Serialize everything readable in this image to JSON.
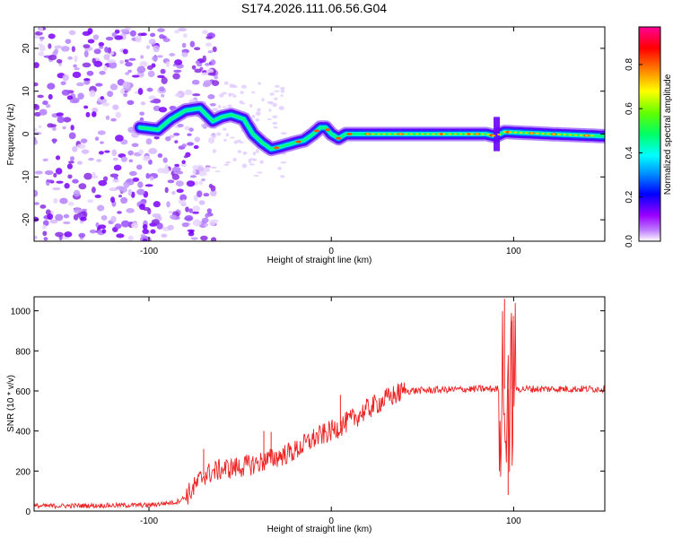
{
  "title": "S174.2026.111.06.56.G04",
  "chart_data": [
    {
      "type": "heatmap",
      "xlabel": "Height of straight line (km)",
      "ylabel": "Frequency (Hz)",
      "xlim": [
        -163,
        150
      ],
      "ylim": [
        -25,
        25
      ],
      "x_ticks": [
        -100,
        0,
        100
      ],
      "y_ticks": [
        -20,
        -10,
        0,
        10,
        20
      ],
      "colorbar": {
        "label": "Normalized spectral amplitude",
        "range": [
          0,
          0.97
        ],
        "ticks": [
          0.0,
          0.2,
          0.4,
          0.6,
          0.8
        ],
        "colors": [
          "#ffffff",
          "#9a00ff",
          "#0000ff",
          "#00b4ff",
          "#00ffff",
          "#00ff64",
          "#64ff00",
          "#ffff00",
          "#ff8000",
          "#ff0000",
          "#ff0096"
        ]
      },
      "ridge_frequency": [
        {
          "x": -105,
          "y": 1.5
        },
        {
          "x": -95,
          "y": 1
        },
        {
          "x": -88,
          "y": 3.5
        },
        {
          "x": -80,
          "y": 5.5
        },
        {
          "x": -72,
          "y": 6
        },
        {
          "x": -65,
          "y": 3
        },
        {
          "x": -60,
          "y": 4
        },
        {
          "x": -55,
          "y": 4.5
        },
        {
          "x": -48,
          "y": 3.5
        },
        {
          "x": -43,
          "y": 0
        },
        {
          "x": -38,
          "y": -2
        },
        {
          "x": -33,
          "y": -3.5
        },
        {
          "x": -28,
          "y": -3
        },
        {
          "x": -20,
          "y": -2
        },
        {
          "x": -15,
          "y": -1.5
        },
        {
          "x": -10,
          "y": 0
        },
        {
          "x": -6,
          "y": 1.5
        },
        {
          "x": -3,
          "y": 1.5
        },
        {
          "x": 0,
          "y": 0
        },
        {
          "x": 4,
          "y": -1
        },
        {
          "x": 8,
          "y": 0
        },
        {
          "x": 20,
          "y": 0
        },
        {
          "x": 60,
          "y": 0
        },
        {
          "x": 85,
          "y": 0
        },
        {
          "x": 90,
          "y": -0.5
        },
        {
          "x": 95,
          "y": 0.5
        },
        {
          "x": 120,
          "y": 0
        },
        {
          "x": 150,
          "y": -0.5
        }
      ]
    },
    {
      "type": "line",
      "xlabel": "Height of straight line (km)",
      "ylabel": "SNR (10 * v/v)",
      "xlim": [
        -163,
        150
      ],
      "ylim": [
        0,
        1070
      ],
      "x_ticks": [
        -100,
        0,
        100
      ],
      "y_ticks": [
        0,
        200,
        400,
        600,
        800,
        1000
      ],
      "series": [
        {
          "color": "#ee2222",
          "trend": [
            {
              "x": -163,
              "y": 25
            },
            {
              "x": -100,
              "y": 30
            },
            {
              "x": -85,
              "y": 45
            },
            {
              "x": -80,
              "y": 70
            },
            {
              "x": -75,
              "y": 120
            },
            {
              "x": -70,
              "y": 180
            },
            {
              "x": -60,
              "y": 210
            },
            {
              "x": -50,
              "y": 220
            },
            {
              "x": -40,
              "y": 240
            },
            {
              "x": -30,
              "y": 270
            },
            {
              "x": -20,
              "y": 300
            },
            {
              "x": -10,
              "y": 360
            },
            {
              "x": 0,
              "y": 400
            },
            {
              "x": 10,
              "y": 450
            },
            {
              "x": 20,
              "y": 510
            },
            {
              "x": 30,
              "y": 560
            },
            {
              "x": 40,
              "y": 600
            },
            {
              "x": 60,
              "y": 605
            },
            {
              "x": 80,
              "y": 610
            },
            {
              "x": 100,
              "y": 610
            },
            {
              "x": 150,
              "y": 610
            }
          ],
          "spikes": [
            {
              "x": -70,
              "y": 310
            },
            {
              "x": -37,
              "y": 400
            },
            {
              "x": -33,
              "y": 395
            },
            {
              "x": 5,
              "y": 580
            },
            {
              "x": 95,
              "y": 1060
            },
            {
              "x": 97,
              "y": 80
            },
            {
              "x": 99,
              "y": 950
            }
          ]
        }
      ]
    }
  ]
}
